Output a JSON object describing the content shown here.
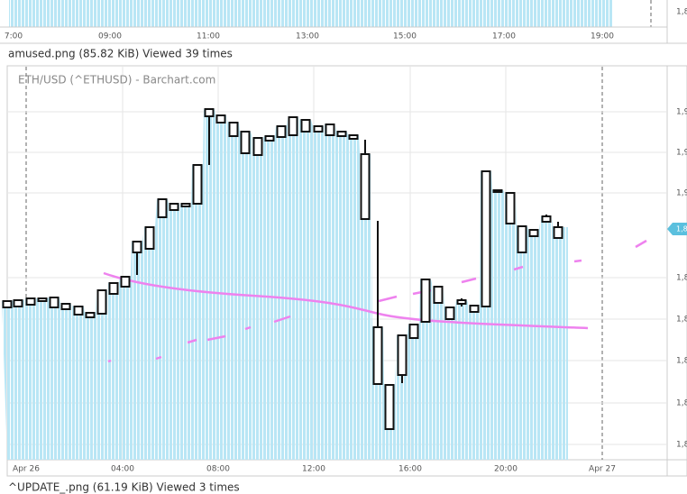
{
  "images": [
    {
      "x_labels": [
        "7:00",
        "09:00",
        "11:00",
        "13:00",
        "15:00",
        "17:00",
        "19:00"
      ],
      "y_labels": [
        "1,8"
      ],
      "caption": "amused.png (85.82 KiB) Viewed 39 times"
    },
    {
      "title": "ETH/USD (^ETHUSD) - Barchart.com",
      "x_labels": [
        "Apr 26",
        "04:00",
        "08:00",
        "12:00",
        "16:00",
        "20:00",
        "Apr 27"
      ],
      "y_labels": [
        "1,9",
        "1,9",
        "1,9",
        "1,8",
        "1,8",
        "1,8",
        "1,8",
        "1,8"
      ],
      "badge": "1,8",
      "caption": "^UPDATE_.png (61.19 KiB) Viewed 3 times"
    }
  ]
}
